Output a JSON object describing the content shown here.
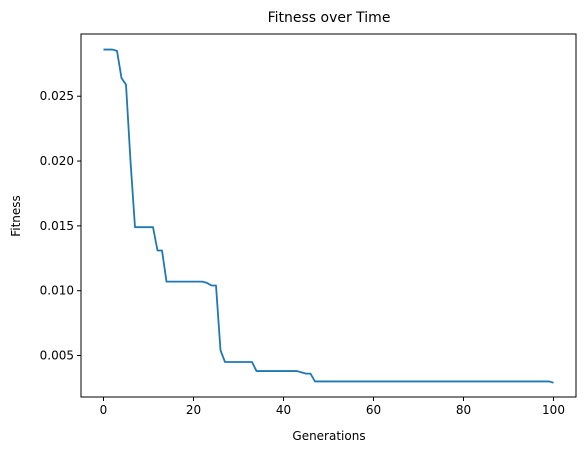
{
  "chart_data": {
    "type": "line",
    "title": "Fitness over Time",
    "xlabel": "Generations",
    "ylabel": "Fitness",
    "xlim": [
      -5,
      105
    ],
    "ylim": [
      0.0018,
      0.0298
    ],
    "xticks": [
      0,
      20,
      40,
      60,
      80,
      100
    ],
    "xtick_labels": [
      "0",
      "20",
      "40",
      "60",
      "80",
      "100"
    ],
    "yticks": [
      0.005,
      0.01,
      0.015,
      0.02,
      0.025
    ],
    "ytick_labels": [
      "0.005",
      "0.010",
      "0.015",
      "0.020",
      "0.025"
    ],
    "grid": false,
    "series": [
      {
        "color": "#1f77b4",
        "x": [
          0,
          1,
          2,
          3,
          4,
          5,
          6,
          7,
          8,
          9,
          10,
          11,
          12,
          13,
          14,
          15,
          16,
          17,
          18,
          19,
          20,
          21,
          22,
          23,
          24,
          25,
          26,
          27,
          28,
          29,
          30,
          31,
          32,
          33,
          34,
          35,
          36,
          37,
          38,
          39,
          40,
          41,
          42,
          43,
          44,
          45,
          46,
          47,
          48,
          49,
          50,
          51,
          52,
          53,
          54,
          55,
          56,
          57,
          58,
          59,
          60,
          61,
          62,
          63,
          64,
          65,
          66,
          67,
          68,
          69,
          70,
          71,
          72,
          73,
          74,
          75,
          76,
          77,
          78,
          79,
          80,
          81,
          82,
          83,
          84,
          85,
          86,
          87,
          88,
          89,
          90,
          91,
          92,
          93,
          94,
          95,
          96,
          97,
          98,
          99,
          100
        ],
        "y": [
          0.0286,
          0.0286,
          0.0286,
          0.0285,
          0.0264,
          0.0259,
          0.02,
          0.0149,
          0.0149,
          0.0149,
          0.0149,
          0.0149,
          0.0131,
          0.0131,
          0.0107,
          0.0107,
          0.0107,
          0.0107,
          0.0107,
          0.0107,
          0.0107,
          0.0107,
          0.0107,
          0.0106,
          0.0104,
          0.0104,
          0.0054,
          0.0045,
          0.0045,
          0.0045,
          0.0045,
          0.0045,
          0.0045,
          0.0045,
          0.0038,
          0.0038,
          0.0038,
          0.0038,
          0.0038,
          0.0038,
          0.0038,
          0.0038,
          0.0038,
          0.0038,
          0.0037,
          0.0036,
          0.0036,
          0.003,
          0.003,
          0.003,
          0.003,
          0.003,
          0.003,
          0.003,
          0.003,
          0.003,
          0.003,
          0.003,
          0.003,
          0.003,
          0.003,
          0.003,
          0.003,
          0.003,
          0.003,
          0.003,
          0.003,
          0.003,
          0.003,
          0.003,
          0.003,
          0.003,
          0.003,
          0.003,
          0.003,
          0.003,
          0.003,
          0.003,
          0.003,
          0.003,
          0.003,
          0.003,
          0.003,
          0.003,
          0.003,
          0.003,
          0.003,
          0.003,
          0.003,
          0.003,
          0.003,
          0.003,
          0.003,
          0.003,
          0.003,
          0.003,
          0.003,
          0.003,
          0.003,
          0.003,
          0.0029
        ]
      }
    ]
  }
}
